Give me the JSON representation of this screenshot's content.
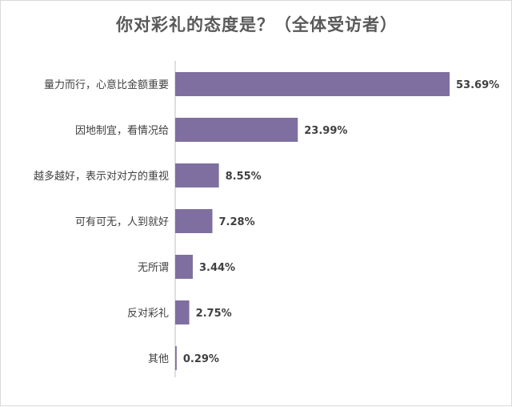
{
  "chart_data": {
    "type": "bar",
    "orientation": "horizontal",
    "title": "你对彩礼的态度是？（全体受访者）",
    "categories": [
      "量力而行，心意比金额重要",
      "因地制宜，看情况给",
      "越多越好，表示对对方的重视",
      "可有可无，人到就好",
      "无所谓",
      "反对彩礼",
      "其他"
    ],
    "values": [
      53.69,
      23.99,
      8.55,
      7.28,
      3.44,
      2.75,
      0.29
    ],
    "value_labels": [
      "53.69%",
      "23.99%",
      "8.55%",
      "7.28%",
      "3.44%",
      "2.75%",
      "0.29%"
    ],
    "xlim": [
      0,
      53.69
    ],
    "bar_color": "#7f6fa0",
    "grid": false,
    "legend": "none"
  }
}
